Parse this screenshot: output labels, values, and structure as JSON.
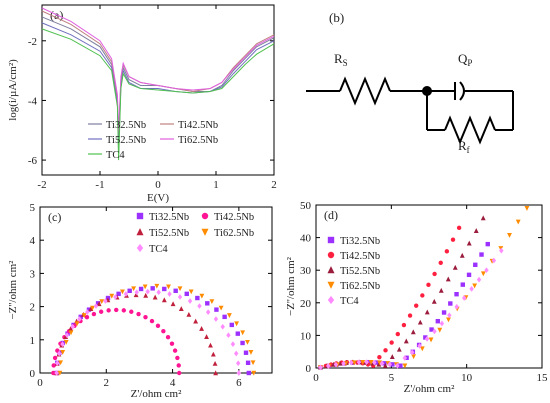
{
  "chart_data": [
    {
      "id": "a",
      "panel_label": "(a)",
      "type": "line",
      "xlabel": "E(V)",
      "ylabel": "log(i/µA/cm²)",
      "xlim": [
        -2,
        2
      ],
      "ylim": [
        -6.5,
        -0.8
      ],
      "xticks": [
        -2,
        -1,
        0,
        1,
        2
      ],
      "yticks": [
        -6,
        -4,
        -2
      ],
      "legend_position": "bottom-left",
      "series": [
        {
          "name": "Ti32.5Nb",
          "color": "#7f7f9f",
          "x": [
            -2,
            -1.5,
            -1,
            -0.8,
            -0.7,
            -0.68,
            -0.64,
            -0.6,
            -0.5,
            -0.3,
            0,
            0.3,
            0.6,
            0.9,
            1.1,
            1.3,
            1.5,
            1.7,
            2
          ],
          "y": [
            -1.2,
            -1.6,
            -2.2,
            -2.8,
            -4.0,
            -5.5,
            -3.4,
            -2.9,
            -3.3,
            -3.5,
            -3.5,
            -3.6,
            -3.7,
            -3.7,
            -3.5,
            -3.0,
            -2.6,
            -2.2,
            -1.9
          ]
        },
        {
          "name": "Ti42.5Nb",
          "color": "#c08080",
          "x": [
            -2,
            -1.5,
            -1,
            -0.8,
            -0.7,
            -0.68,
            -0.64,
            -0.6,
            -0.5,
            -0.3,
            0,
            0.3,
            0.6,
            0.9,
            1.1,
            1.3,
            1.5,
            1.7,
            2
          ],
          "y": [
            -1.0,
            -1.45,
            -2.1,
            -2.7,
            -3.9,
            -5.3,
            -3.3,
            -2.8,
            -3.2,
            -3.4,
            -3.5,
            -3.6,
            -3.7,
            -3.6,
            -3.4,
            -2.9,
            -2.5,
            -2.1,
            -1.8
          ]
        },
        {
          "name": "Ti52.5Nb",
          "color": "#7070c0",
          "x": [
            -2,
            -1.5,
            -1,
            -0.8,
            -0.7,
            -0.68,
            -0.64,
            -0.6,
            -0.5,
            -0.3,
            0,
            0.3,
            0.6,
            0.9,
            1.1,
            1.3,
            1.5,
            1.7,
            2
          ],
          "y": [
            -1.4,
            -1.8,
            -2.35,
            -2.9,
            -4.1,
            -5.8,
            -3.5,
            -3.0,
            -3.4,
            -3.6,
            -3.6,
            -3.7,
            -3.75,
            -3.7,
            -3.55,
            -3.1,
            -2.7,
            -2.3,
            -2.0
          ]
        },
        {
          "name": "Ti62.5Nb",
          "color": "#e060e0",
          "x": [
            -2,
            -1.5,
            -1,
            -0.8,
            -0.7,
            -0.68,
            -0.64,
            -0.6,
            -0.5,
            -0.3,
            0,
            0.3,
            0.6,
            0.9,
            1.1,
            1.3,
            1.5,
            1.7,
            2
          ],
          "y": [
            -0.9,
            -1.35,
            -2.0,
            -2.6,
            -3.8,
            -5.0,
            -3.2,
            -2.75,
            -3.2,
            -3.4,
            -3.5,
            -3.6,
            -3.65,
            -3.6,
            -3.4,
            -2.95,
            -2.55,
            -2.15,
            -1.85
          ]
        },
        {
          "name": "TC4",
          "color": "#50c050",
          "x": [
            -2,
            -1.5,
            -1,
            -0.8,
            -0.7,
            -0.68,
            -0.64,
            -0.6,
            -0.5,
            -0.3,
            0,
            0.3,
            0.6,
            0.9,
            1.1,
            1.3,
            1.5,
            1.7,
            2
          ],
          "y": [
            -1.6,
            -1.95,
            -2.5,
            -3.0,
            -4.2,
            -6.0,
            -3.6,
            -3.1,
            -3.45,
            -3.6,
            -3.65,
            -3.7,
            -3.75,
            -3.7,
            -3.6,
            -3.2,
            -2.8,
            -2.45,
            -2.1
          ]
        }
      ]
    },
    {
      "id": "c",
      "panel_label": "(c)",
      "type": "scatter",
      "xlabel": "Z'/ohm cm²",
      "ylabel": "−Z''/ohm cm²",
      "xlim": [
        0,
        7
      ],
      "ylim": [
        0,
        5
      ],
      "xticks": [
        0,
        2,
        4,
        6
      ],
      "yticks": [
        0,
        1,
        2,
        3,
        4,
        5
      ],
      "legend_position": "top-right",
      "series": [
        {
          "name": "Ti32.5Nb",
          "color": "#9b30ff",
          "marker": "square",
          "x0": 0.5,
          "x1": 6.3,
          "peak": 2.55
        },
        {
          "name": "Ti42.5Nb",
          "color": "#ff1493",
          "marker": "circle",
          "x0": 0.4,
          "x1": 4.2,
          "peak": 1.9
        },
        {
          "name": "Ti52.5Nb",
          "color": "#c0203c",
          "marker": "triangle-up",
          "x0": 0.5,
          "x1": 5.3,
          "peak": 2.35
        },
        {
          "name": "Ti62.5Nb",
          "color": "#ff8c00",
          "marker": "triangle-down",
          "x0": 0.6,
          "x1": 6.45,
          "peak": 2.62
        },
        {
          "name": "TC4",
          "color": "#ff8cff",
          "marker": "diamond",
          "x0": 0.5,
          "x1": 6.0,
          "peak": 2.45
        }
      ]
    },
    {
      "id": "d",
      "panel_label": "(d)",
      "type": "scatter",
      "xlabel": "Z'/ohm cm²",
      "ylabel": "−Z''/ohm cm²",
      "xlim": [
        0,
        15
      ],
      "ylim": [
        0,
        50
      ],
      "xticks": [
        0,
        5,
        10,
        15
      ],
      "yticks": [
        0,
        10,
        20,
        30,
        40,
        50
      ],
      "legend_position": "top-left",
      "series": [
        {
          "name": "Ti32.5Nb",
          "color": "#9b30ff",
          "marker": "square",
          "xknee": 5.6,
          "xend": 11.4,
          "yend": 38
        },
        {
          "name": "Ti42.5Nb",
          "color": "#ff2040",
          "marker": "circle",
          "xknee": 3.8,
          "xend": 9.5,
          "yend": 43
        },
        {
          "name": "Ti52.5Nb",
          "color": "#9b1c3c",
          "marker": "triangle-up",
          "xknee": 4.6,
          "xend": 11.1,
          "yend": 46
        },
        {
          "name": "Ti62.5Nb",
          "color": "#ff8c00",
          "marker": "triangle-down",
          "xknee": 5.9,
          "xend": 14.0,
          "yend": 49
        },
        {
          "name": "TC4",
          "color": "#ff8cff",
          "marker": "diamond",
          "xknee": 5.4,
          "xend": 12.3,
          "yend": 36
        }
      ]
    }
  ],
  "circuit": {
    "panel_label": "(b)",
    "labels": {
      "rs": "R",
      "rs_sub": "S",
      "qp": "Q",
      "qp_sub": "P",
      "rf": "R",
      "rf_sub": "f"
    }
  }
}
